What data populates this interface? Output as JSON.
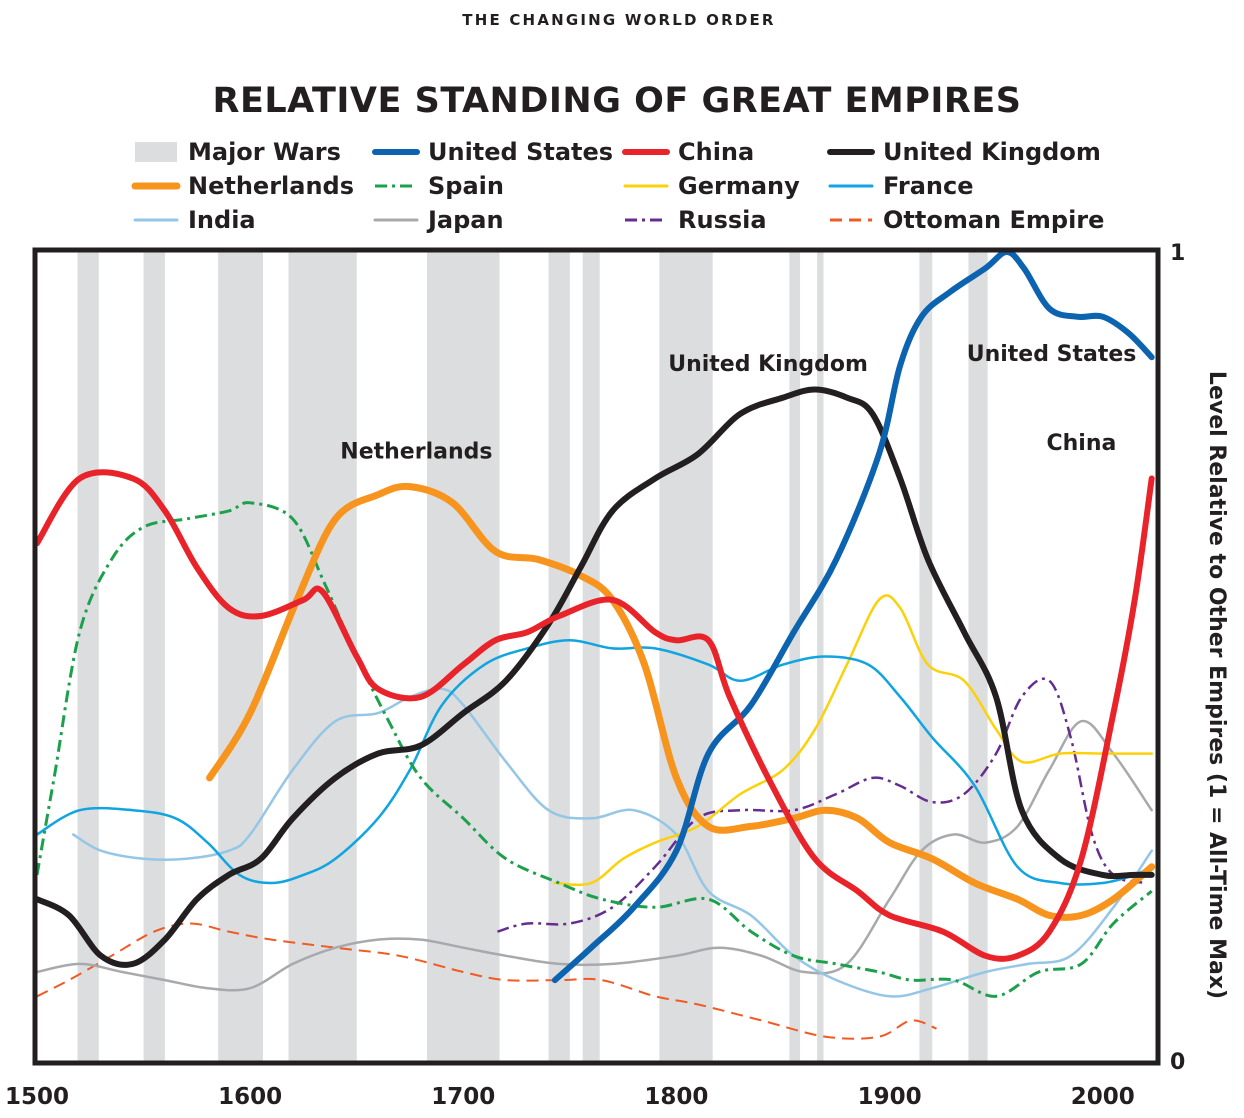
{
  "chart_data": {
    "type": "line",
    "supertitle": "THE CHANGING WORLD ORDER",
    "title": "RELATIVE STANDING OF GREAT EMPIRES",
    "ylabel": "Level Relative to Other Empires (1 = All-Time Max)",
    "xlim": [
      1500,
      2025
    ],
    "ylim": [
      0,
      1
    ],
    "x_ticks": [
      1500,
      1600,
      1700,
      1800,
      1900,
      2000
    ],
    "y_ticks": [
      {
        "value": 0,
        "label": "0"
      },
      {
        "value": 1,
        "label": "1"
      }
    ],
    "major_wars_label": "Major Wars",
    "major_wars_color": "#dcdddf",
    "major_wars": [
      [
        1519,
        1529
      ],
      [
        1550,
        1560
      ],
      [
        1585,
        1606
      ],
      [
        1618,
        1650
      ],
      [
        1683,
        1717
      ],
      [
        1740,
        1750
      ],
      [
        1756,
        1764
      ],
      [
        1792,
        1817
      ],
      [
        1853,
        1858
      ],
      [
        1866,
        1869
      ],
      [
        1914,
        1920
      ],
      [
        1937,
        1946
      ]
    ],
    "legend": [
      {
        "key": "wars",
        "label": "Major Wars"
      },
      {
        "key": "us",
        "label": "United States"
      },
      {
        "key": "china",
        "label": "China"
      },
      {
        "key": "uk",
        "label": "United Kingdom"
      },
      {
        "key": "netherlands",
        "label": "Netherlands"
      },
      {
        "key": "spain",
        "label": "Spain"
      },
      {
        "key": "germany",
        "label": "Germany"
      },
      {
        "key": "france",
        "label": "France"
      },
      {
        "key": "india",
        "label": "India"
      },
      {
        "key": "japan",
        "label": "Japan"
      },
      {
        "key": "russia",
        "label": "Russia"
      },
      {
        "key": "ottoman",
        "label": "Ottoman Empire"
      }
    ],
    "annotations": [
      {
        "text": "Netherlands",
        "x": 1678,
        "y": 0.745
      },
      {
        "text": "United Kingdom",
        "x": 1843,
        "y": 0.853
      },
      {
        "text": "United States",
        "x": 1976,
        "y": 0.865
      },
      {
        "text": "China",
        "x": 1990,
        "y": 0.755
      }
    ],
    "series": [
      {
        "key": "wars",
        "name": "Major Wars",
        "color": "#dcdddf",
        "width": 18,
        "dash": ""
      },
      {
        "key": "us",
        "name": "United States",
        "color": "#0c63b0",
        "width": 6,
        "dash": "",
        "x": [
          1743,
          1760,
          1780,
          1800,
          1815,
          1835,
          1855,
          1875,
          1895,
          1905,
          1915,
          1928,
          1945,
          1955,
          1963,
          1975,
          1988,
          2000,
          2012,
          2023
        ],
        "y": [
          0.1,
          0.14,
          0.19,
          0.26,
          0.38,
          0.44,
          0.53,
          0.62,
          0.75,
          0.86,
          0.92,
          0.95,
          0.98,
          1.0,
          0.98,
          0.93,
          0.92,
          0.92,
          0.9,
          0.87
        ]
      },
      {
        "key": "china",
        "name": "China",
        "color": "#e8242a",
        "width": 6,
        "dash": "",
        "x": [
          1500,
          1520,
          1545,
          1560,
          1575,
          1590,
          1605,
          1625,
          1634,
          1650,
          1660,
          1680,
          1700,
          1715,
          1730,
          1745,
          1770,
          1790,
          1800,
          1815,
          1825,
          1845,
          1865,
          1885,
          1900,
          1925,
          1945,
          1960,
          1975,
          1990,
          2005,
          2015,
          2023
        ],
        "y": [
          0.64,
          0.72,
          0.72,
          0.68,
          0.61,
          0.56,
          0.55,
          0.57,
          0.58,
          0.5,
          0.46,
          0.45,
          0.49,
          0.52,
          0.53,
          0.55,
          0.57,
          0.53,
          0.52,
          0.52,
          0.45,
          0.34,
          0.25,
          0.21,
          0.18,
          0.16,
          0.13,
          0.13,
          0.16,
          0.25,
          0.43,
          0.57,
          0.72
        ]
      },
      {
        "key": "uk",
        "name": "United Kingdom",
        "color": "#231f20",
        "width": 6,
        "dash": "",
        "x": [
          1500,
          1515,
          1530,
          1545,
          1560,
          1575,
          1590,
          1605,
          1620,
          1640,
          1660,
          1680,
          1700,
          1720,
          1740,
          1755,
          1770,
          1790,
          1810,
          1830,
          1850,
          1865,
          1880,
          1892,
          1905,
          1918,
          1935,
          1950,
          1962,
          1980,
          2000,
          2015,
          2023
        ],
        "y": [
          0.2,
          0.18,
          0.13,
          0.12,
          0.15,
          0.2,
          0.23,
          0.25,
          0.3,
          0.35,
          0.38,
          0.39,
          0.43,
          0.47,
          0.54,
          0.61,
          0.68,
          0.72,
          0.75,
          0.8,
          0.82,
          0.83,
          0.82,
          0.8,
          0.72,
          0.62,
          0.53,
          0.45,
          0.31,
          0.25,
          0.23,
          0.23,
          0.23
        ]
      },
      {
        "key": "netherlands",
        "name": "Netherlands",
        "color": "#f7941d",
        "width": 7,
        "dash": "",
        "x": [
          1581,
          1600,
          1622,
          1640,
          1660,
          1675,
          1695,
          1715,
          1735,
          1755,
          1770,
          1785,
          1800,
          1815,
          1835,
          1855,
          1870,
          1885,
          1900,
          1920,
          1940,
          1960,
          1975,
          1990,
          2005,
          2023
        ],
        "y": [
          0.35,
          0.43,
          0.57,
          0.67,
          0.7,
          0.71,
          0.69,
          0.63,
          0.62,
          0.6,
          0.57,
          0.49,
          0.35,
          0.29,
          0.29,
          0.3,
          0.31,
          0.3,
          0.27,
          0.25,
          0.22,
          0.2,
          0.18,
          0.18,
          0.2,
          0.24
        ]
      },
      {
        "key": "spain",
        "name": "Spain",
        "color": "#1ca04b",
        "width": 3,
        "dash": "12,5,3,5",
        "x": [
          1500,
          1508,
          1520,
          1535,
          1550,
          1570,
          1590,
          1600,
          1620,
          1635,
          1650,
          1665,
          1680,
          1700,
          1720,
          1745,
          1765,
          1790,
          1815,
          1835,
          1855,
          1875,
          1895,
          1910,
          1930,
          1950,
          1970,
          1990,
          2005,
          2023
        ],
        "y": [
          0.23,
          0.35,
          0.53,
          0.62,
          0.66,
          0.67,
          0.68,
          0.69,
          0.67,
          0.59,
          0.5,
          0.42,
          0.35,
          0.3,
          0.25,
          0.22,
          0.2,
          0.19,
          0.2,
          0.16,
          0.13,
          0.12,
          0.11,
          0.1,
          0.1,
          0.08,
          0.11,
          0.12,
          0.17,
          0.21
        ]
      },
      {
        "key": "germany",
        "name": "Germany",
        "color": "#fdd10a",
        "width": 2.5,
        "dash": "",
        "x": [
          1743,
          1760,
          1775,
          1790,
          1810,
          1830,
          1850,
          1865,
          1880,
          1895,
          1905,
          1918,
          1935,
          1950,
          1962,
          1980,
          2000,
          2023
        ],
        "y": [
          0.22,
          0.22,
          0.25,
          0.27,
          0.29,
          0.33,
          0.36,
          0.41,
          0.49,
          0.57,
          0.56,
          0.49,
          0.47,
          0.41,
          0.37,
          0.38,
          0.38,
          0.38
        ]
      },
      {
        "key": "france",
        "name": "France",
        "color": "#10a4e0",
        "width": 2.5,
        "dash": "",
        "x": [
          1500,
          1520,
          1545,
          1565,
          1580,
          1595,
          1610,
          1625,
          1640,
          1660,
          1675,
          1690,
          1710,
          1730,
          1750,
          1770,
          1790,
          1815,
          1830,
          1850,
          1870,
          1890,
          1905,
          1920,
          1940,
          1960,
          1980,
          2000,
          2015,
          2023
        ],
        "y": [
          0.28,
          0.31,
          0.31,
          0.3,
          0.27,
          0.23,
          0.22,
          0.23,
          0.25,
          0.3,
          0.36,
          0.44,
          0.49,
          0.51,
          0.52,
          0.51,
          0.51,
          0.49,
          0.47,
          0.49,
          0.5,
          0.49,
          0.45,
          0.4,
          0.34,
          0.24,
          0.22,
          0.22,
          0.23,
          0.24
        ]
      },
      {
        "key": "india",
        "name": "India",
        "color": "#94c6e6",
        "width": 2.5,
        "dash": "",
        "x": [
          1517,
          1530,
          1550,
          1570,
          1590,
          1600,
          1620,
          1640,
          1660,
          1675,
          1690,
          1700,
          1720,
          1740,
          1760,
          1780,
          1800,
          1815,
          1835,
          1855,
          1875,
          1900,
          1920,
          1945,
          1965,
          1985,
          2005,
          2023
        ],
        "y": [
          0.28,
          0.26,
          0.25,
          0.25,
          0.26,
          0.28,
          0.36,
          0.42,
          0.43,
          0.45,
          0.46,
          0.44,
          0.37,
          0.31,
          0.3,
          0.31,
          0.28,
          0.21,
          0.18,
          0.13,
          0.1,
          0.08,
          0.09,
          0.11,
          0.12,
          0.13,
          0.19,
          0.26
        ]
      },
      {
        "key": "japan",
        "name": "Japan",
        "color": "#a7a9ac",
        "width": 2.5,
        "dash": "",
        "x": [
          1500,
          1520,
          1540,
          1560,
          1580,
          1600,
          1620,
          1640,
          1660,
          1680,
          1700,
          1720,
          1745,
          1770,
          1800,
          1820,
          1840,
          1860,
          1880,
          1900,
          1915,
          1930,
          1945,
          1960,
          1975,
          1990,
          2005,
          2023
        ],
        "y": [
          0.11,
          0.12,
          0.11,
          0.1,
          0.09,
          0.09,
          0.12,
          0.14,
          0.15,
          0.15,
          0.14,
          0.13,
          0.12,
          0.12,
          0.13,
          0.14,
          0.13,
          0.11,
          0.12,
          0.2,
          0.26,
          0.28,
          0.27,
          0.29,
          0.36,
          0.42,
          0.38,
          0.31
        ]
      },
      {
        "key": "russia",
        "name": "Russia",
        "color": "#662d91",
        "width": 2.5,
        "dash": "12,5,3,5",
        "x": [
          1716,
          1730,
          1750,
          1770,
          1790,
          1810,
          1830,
          1855,
          1875,
          1892,
          1905,
          1920,
          1935,
          1950,
          1962,
          1975,
          1985,
          1995,
          2005,
          2020
        ],
        "y": [
          0.16,
          0.17,
          0.17,
          0.19,
          0.24,
          0.3,
          0.31,
          0.31,
          0.33,
          0.35,
          0.34,
          0.32,
          0.33,
          0.38,
          0.45,
          0.47,
          0.4,
          0.28,
          0.23,
          0.22
        ]
      },
      {
        "key": "ottoman",
        "name": "Ottoman Empire",
        "color": "#f15a22",
        "width": 2,
        "dash": "12,7",
        "x": [
          1500,
          1515,
          1535,
          1555,
          1572,
          1590,
          1610,
          1640,
          1670,
          1700,
          1720,
          1745,
          1765,
          1790,
          1810,
          1840,
          1870,
          1895,
          1910,
          1922
        ],
        "y": [
          0.08,
          0.1,
          0.13,
          0.16,
          0.17,
          0.16,
          0.15,
          0.14,
          0.13,
          0.11,
          0.1,
          0.1,
          0.1,
          0.08,
          0.07,
          0.05,
          0.03,
          0.03,
          0.05,
          0.04
        ]
      }
    ]
  }
}
